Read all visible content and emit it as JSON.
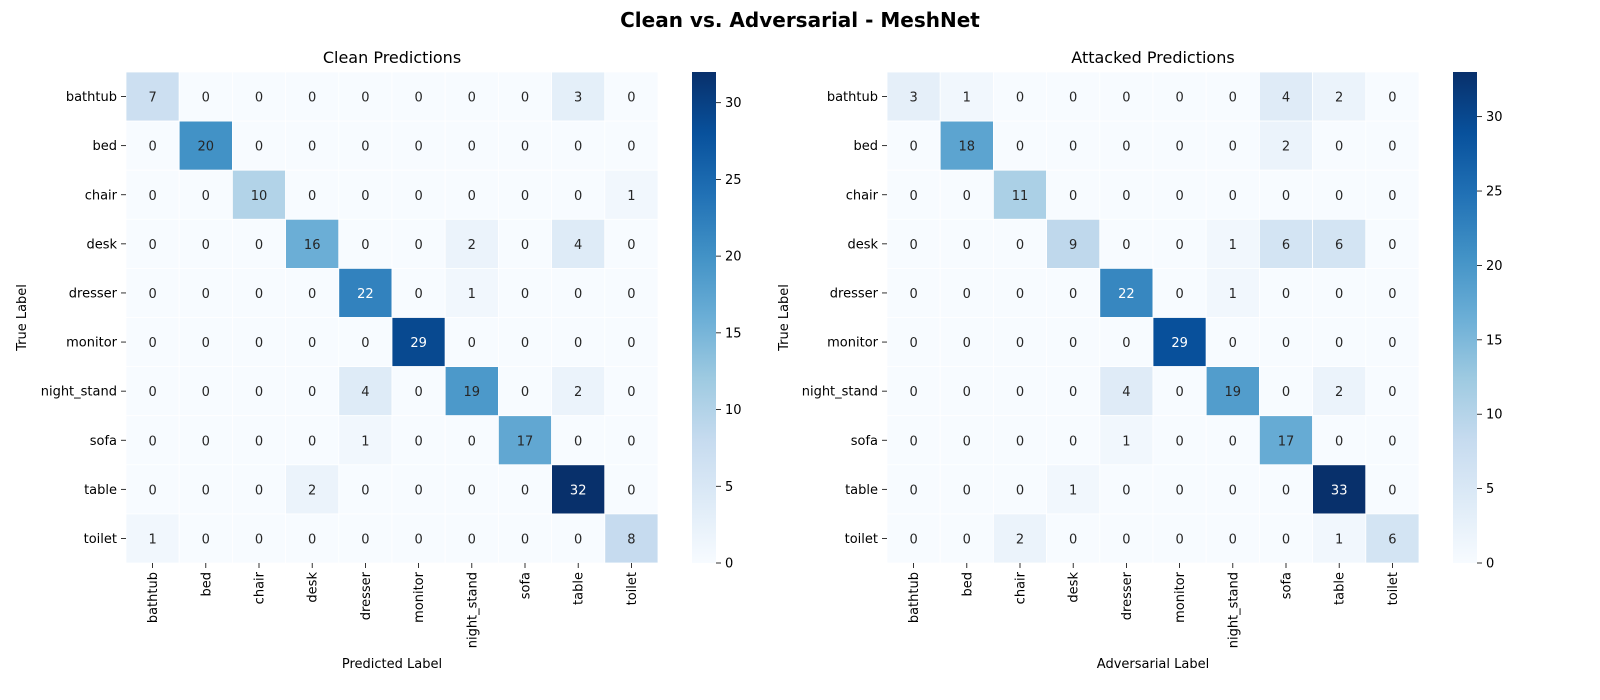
{
  "figure": {
    "title": "Clean vs. Adversarial - MeshNet"
  },
  "chart_data": [
    {
      "type": "heatmap",
      "title": "Clean Predictions",
      "xlabel": "Predicted Label",
      "ylabel": "True Label",
      "x_categories": [
        "bathtub",
        "bed",
        "chair",
        "desk",
        "dresser",
        "monitor",
        "night_stand",
        "sofa",
        "table",
        "toilet"
      ],
      "y_categories": [
        "bathtub",
        "bed",
        "chair",
        "desk",
        "dresser",
        "monitor",
        "night_stand",
        "sofa",
        "table",
        "toilet"
      ],
      "values": [
        [
          7,
          0,
          0,
          0,
          0,
          0,
          0,
          0,
          3,
          0
        ],
        [
          0,
          20,
          0,
          0,
          0,
          0,
          0,
          0,
          0,
          0
        ],
        [
          0,
          0,
          10,
          0,
          0,
          0,
          0,
          0,
          0,
          1
        ],
        [
          0,
          0,
          0,
          16,
          0,
          0,
          2,
          0,
          4,
          0
        ],
        [
          0,
          0,
          0,
          0,
          22,
          0,
          1,
          0,
          0,
          0
        ],
        [
          0,
          0,
          0,
          0,
          0,
          29,
          0,
          0,
          0,
          0
        ],
        [
          0,
          0,
          0,
          0,
          4,
          0,
          19,
          0,
          2,
          0
        ],
        [
          0,
          0,
          0,
          0,
          1,
          0,
          0,
          17,
          0,
          0
        ],
        [
          0,
          0,
          0,
          2,
          0,
          0,
          0,
          0,
          32,
          0
        ],
        [
          1,
          0,
          0,
          0,
          0,
          0,
          0,
          0,
          0,
          8
        ]
      ],
      "colorbar": {
        "range": [
          0,
          32
        ],
        "ticks": [
          0,
          5,
          10,
          15,
          20,
          25,
          30
        ]
      },
      "colormap": [
        "#f7fbff",
        "#deebf7",
        "#c6dbef",
        "#9ecae1",
        "#6baed6",
        "#4292c6",
        "#2171b5",
        "#08519c",
        "#08306b"
      ]
    },
    {
      "type": "heatmap",
      "title": "Attacked Predictions",
      "xlabel": "Adversarial Label",
      "ylabel": "True Label",
      "x_categories": [
        "bathtub",
        "bed",
        "chair",
        "desk",
        "dresser",
        "monitor",
        "night_stand",
        "sofa",
        "table",
        "toilet"
      ],
      "y_categories": [
        "bathtub",
        "bed",
        "chair",
        "desk",
        "dresser",
        "monitor",
        "night_stand",
        "sofa",
        "table",
        "toilet"
      ],
      "values": [
        [
          3,
          1,
          0,
          0,
          0,
          0,
          0,
          4,
          2,
          0
        ],
        [
          0,
          18,
          0,
          0,
          0,
          0,
          0,
          2,
          0,
          0
        ],
        [
          0,
          0,
          11,
          0,
          0,
          0,
          0,
          0,
          0,
          0
        ],
        [
          0,
          0,
          0,
          9,
          0,
          0,
          1,
          6,
          6,
          0
        ],
        [
          0,
          0,
          0,
          0,
          22,
          0,
          1,
          0,
          0,
          0
        ],
        [
          0,
          0,
          0,
          0,
          0,
          29,
          0,
          0,
          0,
          0
        ],
        [
          0,
          0,
          0,
          0,
          4,
          0,
          19,
          0,
          2,
          0
        ],
        [
          0,
          0,
          0,
          0,
          1,
          0,
          0,
          17,
          0,
          0
        ],
        [
          0,
          0,
          0,
          1,
          0,
          0,
          0,
          0,
          33,
          0
        ],
        [
          0,
          0,
          2,
          0,
          0,
          0,
          0,
          0,
          1,
          6
        ]
      ],
      "colorbar": {
        "range": [
          0,
          33
        ],
        "ticks": [
          0,
          5,
          10,
          15,
          20,
          25,
          30
        ]
      },
      "colormap": [
        "#f7fbff",
        "#deebf7",
        "#c6dbef",
        "#9ecae1",
        "#6baed6",
        "#4292c6",
        "#2171b5",
        "#08519c",
        "#08306b"
      ]
    }
  ]
}
